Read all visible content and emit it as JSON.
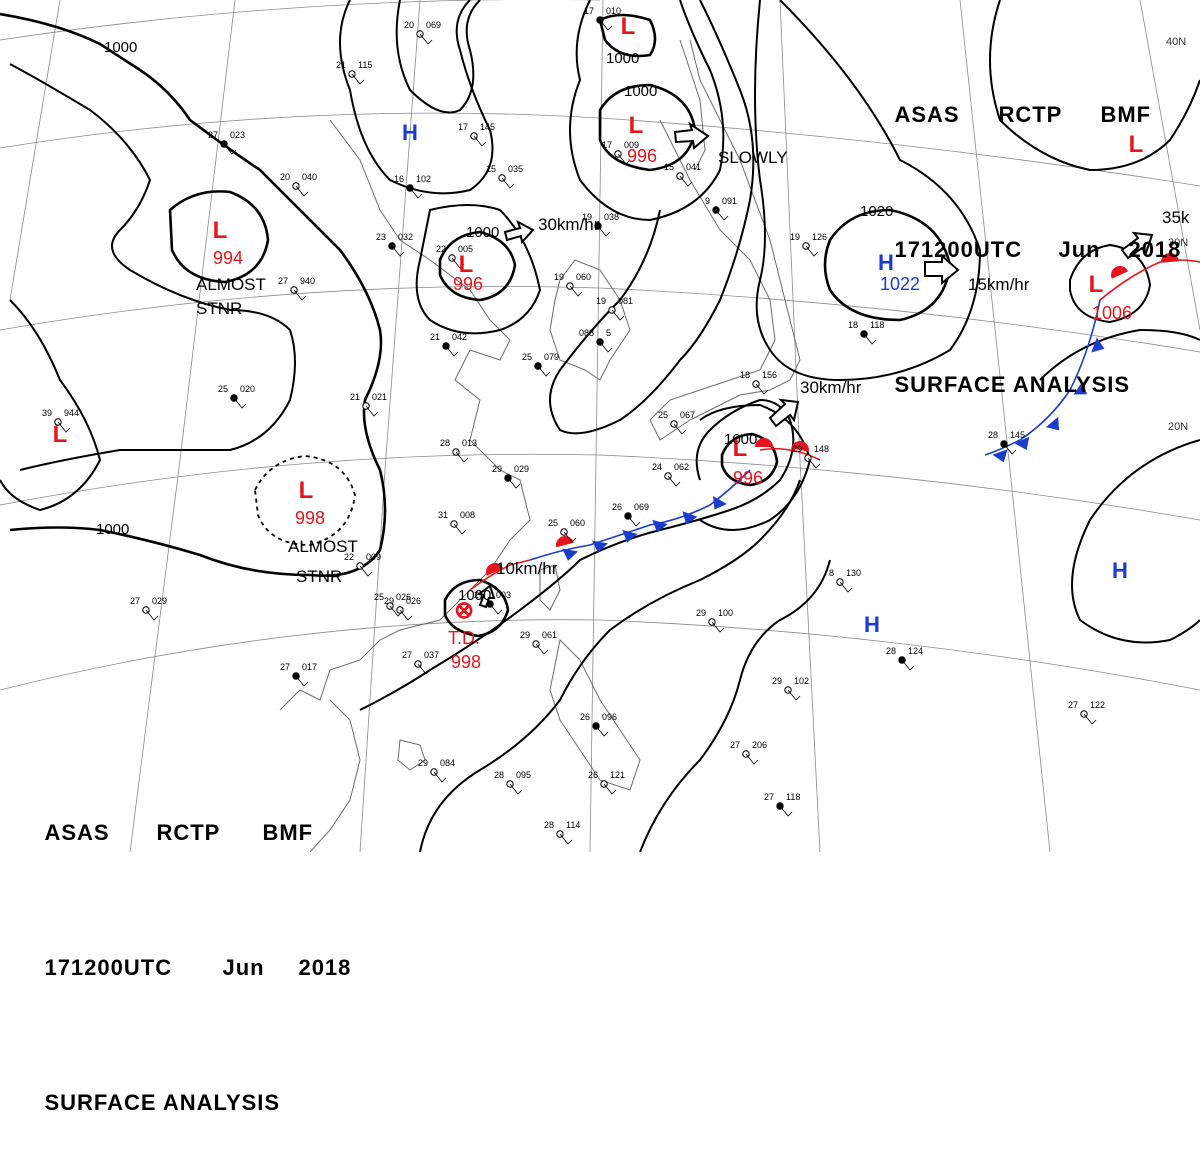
{
  "header": {
    "agency": "ASAS",
    "station": "RCTP",
    "service": "BMF",
    "time": "171200UTC",
    "month": "Jun",
    "year": "2018",
    "title": "SURFACE ANALYSIS"
  },
  "colors": {
    "low": "#e8141c",
    "high": "#1a3ccc",
    "isobar": "#000000",
    "grid": "#8a8a8a",
    "coast": "#6a6a6a",
    "warm_front": "#e8141c",
    "cold_front": "#1a3ccc"
  },
  "pressure_centers": [
    {
      "type": "L",
      "value": "994"
    },
    {
      "type": "L",
      "value": "996"
    },
    {
      "type": "L",
      "value": "996"
    },
    {
      "type": "L",
      "value": "998"
    },
    {
      "type": "L",
      "value": "996"
    },
    {
      "type": "L",
      "value": "1006"
    },
    {
      "type": "L",
      "value": ""
    },
    {
      "type": "L",
      "value": ""
    },
    {
      "type": "L",
      "value": ""
    },
    {
      "type": "H",
      "value": "1022"
    },
    {
      "type": "H",
      "value": ""
    },
    {
      "type": "H",
      "value": ""
    },
    {
      "type": "H",
      "value": ""
    },
    {
      "type": "TD",
      "value": "998",
      "label": "T.D."
    }
  ],
  "isobar_labels": [
    "1000",
    "1000",
    "1000",
    "1000",
    "1000",
    "1000",
    "1020",
    "1000"
  ],
  "motion": {
    "almost_stnr": "ALMOST",
    "stnr": "STNR",
    "slowly": "SLOWLY",
    "speed_30": "30km/hr",
    "speed_15": "15km/hr",
    "speed_10": "10km/hr",
    "speed_35": "35k"
  },
  "lat_labels": [
    "40N",
    "30N",
    "20N"
  ],
  "stations": [
    [
      "27",
      "023"
    ],
    [
      "20",
      "040"
    ],
    [
      "21",
      "115"
    ],
    [
      "23",
      "032"
    ],
    [
      "22",
      "005"
    ],
    [
      "27",
      "940"
    ],
    [
      "21",
      "042"
    ],
    [
      "21",
      "021"
    ],
    [
      "28",
      "013"
    ],
    [
      "29",
      "029"
    ],
    [
      "31",
      "008"
    ],
    [
      "25",
      "060"
    ],
    [
      "26",
      "069"
    ],
    [
      "24",
      "062"
    ],
    [
      "25",
      "067"
    ],
    [
      "19",
      "038"
    ],
    [
      "19",
      "060"
    ],
    [
      "19",
      "081"
    ],
    [
      "088",
      "5"
    ],
    [
      "15",
      "035"
    ],
    [
      "17",
      "145"
    ],
    [
      "16",
      "102"
    ],
    [
      "17",
      "009"
    ],
    [
      "15",
      "041"
    ],
    [
      "9",
      "091"
    ],
    [
      "29",
      "026"
    ],
    [
      "27",
      "037"
    ],
    [
      "27",
      "017"
    ],
    [
      "27",
      "029"
    ],
    [
      "25",
      "026"
    ],
    [
      "29",
      "003"
    ],
    [
      "29",
      "100"
    ],
    [
      "29",
      "102"
    ],
    [
      "28",
      "124"
    ],
    [
      "8",
      "130"
    ],
    [
      "29",
      "148"
    ],
    [
      "28",
      "145"
    ],
    [
      "27",
      "122"
    ],
    [
      "27",
      "206"
    ],
    [
      "27",
      "118"
    ],
    [
      "29",
      "084"
    ],
    [
      "28",
      "095"
    ],
    [
      "26",
      "096"
    ],
    [
      "26",
      "121"
    ],
    [
      "18",
      "156"
    ],
    [
      "18",
      "118"
    ],
    [
      "19",
      "126"
    ],
    [
      "39",
      "944"
    ],
    [
      "25",
      "020"
    ],
    [
      "20",
      "069"
    ],
    [
      "22",
      "009"
    ],
    [
      "25",
      "079"
    ],
    [
      "29",
      "061"
    ],
    [
      "28",
      "114"
    ],
    [
      "17",
      "010"
    ]
  ]
}
